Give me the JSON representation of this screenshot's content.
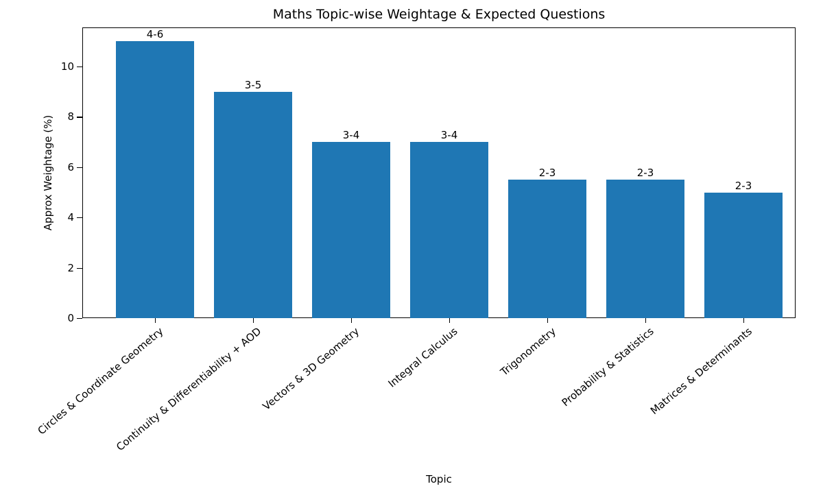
{
  "chart_data": {
    "type": "bar",
    "title": "Maths Topic-wise Weightage & Expected Questions",
    "xlabel": "Topic",
    "ylabel": "Approx Weightage (%)",
    "ylim": [
      0,
      11.55
    ],
    "yticks": [
      0,
      2,
      4,
      6,
      8,
      10
    ],
    "grid": false,
    "legend": null,
    "color": "#1f77b4",
    "categories": [
      "Circles & Coordinate Geometry",
      "Continuity & Differentiability + AOD",
      "Vectors & 3D Geometry",
      "Integral Calculus",
      "Trigonometry",
      "Probability & Statistics",
      "Matrices & Determinants"
    ],
    "values": [
      11,
      9,
      7,
      7,
      5.5,
      5.5,
      5
    ],
    "annotations": [
      "4-6",
      "3-5",
      "3-4",
      "3-4",
      "2-3",
      "2-3",
      "2-3"
    ]
  }
}
